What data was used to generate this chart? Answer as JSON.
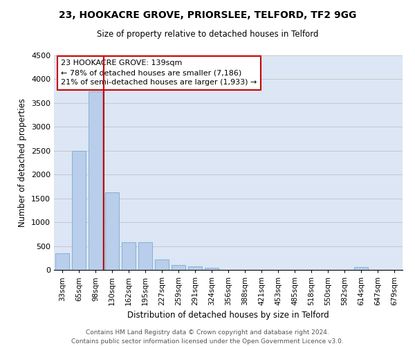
{
  "title1": "23, HOOKACRE GROVE, PRIORSLEE, TELFORD, TF2 9GG",
  "title2": "Size of property relative to detached houses in Telford",
  "xlabel": "Distribution of detached houses by size in Telford",
  "ylabel": "Number of detached properties",
  "categories": [
    "33sqm",
    "65sqm",
    "98sqm",
    "130sqm",
    "162sqm",
    "195sqm",
    "227sqm",
    "259sqm",
    "291sqm",
    "324sqm",
    "356sqm",
    "388sqm",
    "421sqm",
    "453sqm",
    "485sqm",
    "518sqm",
    "550sqm",
    "582sqm",
    "614sqm",
    "647sqm",
    "679sqm"
  ],
  "values": [
    350,
    2500,
    3750,
    1625,
    580,
    580,
    215,
    100,
    75,
    50,
    0,
    0,
    0,
    0,
    0,
    0,
    0,
    0,
    60,
    0,
    0
  ],
  "bar_color": "#b8ceea",
  "bar_edge_color": "#7aaad0",
  "grid_color": "#c8c8c8",
  "bg_color": "#dce6f5",
  "annotation_text": "23 HOOKACRE GROVE: 139sqm\n← 78% of detached houses are smaller (7,186)\n21% of semi-detached houses are larger (1,933) →",
  "vline_x_idx": 3,
  "annotation_box_color": "#cc0000",
  "footer": "Contains HM Land Registry data © Crown copyright and database right 2024.\nContains public sector information licensed under the Open Government Licence v3.0.",
  "ylim": [
    0,
    4500
  ],
  "yticks": [
    0,
    500,
    1000,
    1500,
    2000,
    2500,
    3000,
    3500,
    4000,
    4500
  ]
}
